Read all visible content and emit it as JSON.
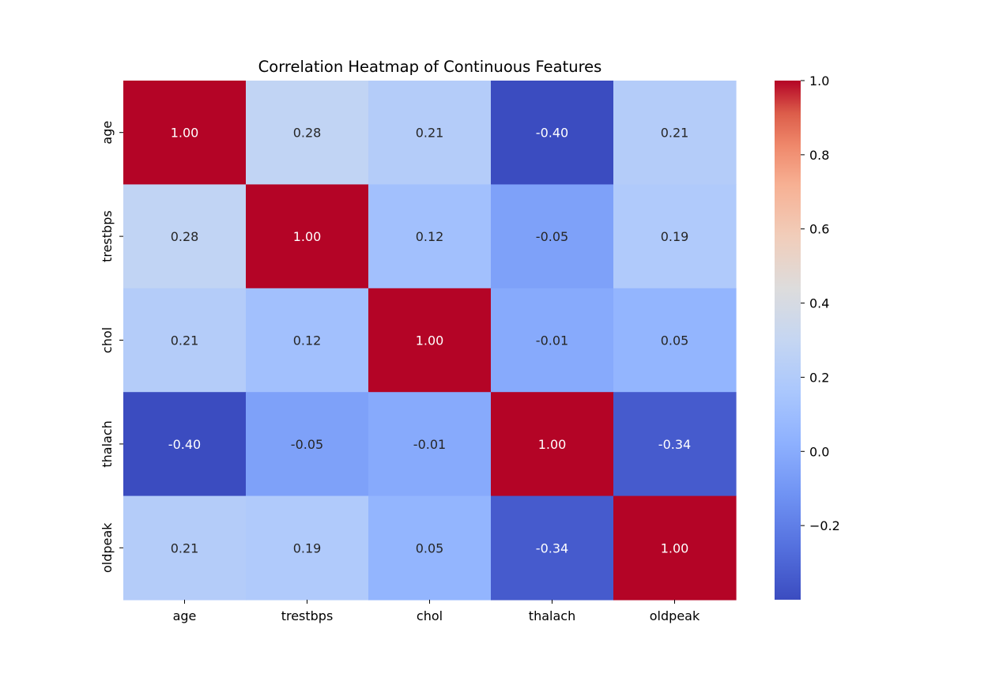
{
  "chart_data": {
    "type": "heatmap",
    "title": "Correlation Heatmap of Continuous Features",
    "x_labels": [
      "age",
      "trestbps",
      "chol",
      "thalach",
      "oldpeak"
    ],
    "y_labels": [
      "age",
      "trestbps",
      "chol",
      "thalach",
      "oldpeak"
    ],
    "values": [
      [
        1.0,
        0.28,
        0.21,
        -0.4,
        0.21
      ],
      [
        0.28,
        1.0,
        0.12,
        -0.05,
        0.19
      ],
      [
        0.21,
        0.12,
        1.0,
        -0.01,
        0.05
      ],
      [
        -0.4,
        -0.05,
        -0.01,
        1.0,
        -0.34
      ],
      [
        0.21,
        0.19,
        0.05,
        -0.34,
        1.0
      ]
    ],
    "cell_labels": [
      [
        "1.00",
        "0.28",
        "0.21",
        "-0.40",
        "0.21"
      ],
      [
        "0.28",
        "1.00",
        "0.12",
        "-0.05",
        "0.19"
      ],
      [
        "0.21",
        "0.12",
        "1.00",
        "-0.01",
        "0.05"
      ],
      [
        "-0.40",
        "-0.05",
        "-0.01",
        "1.00",
        "-0.34"
      ],
      [
        "0.21",
        "0.19",
        "0.05",
        "-0.34",
        "1.00"
      ]
    ],
    "colormap": "coolwarm",
    "colorbar": {
      "vmin": -0.4,
      "vmax": 1.0,
      "ticks": [
        -0.2,
        0.0,
        0.2,
        0.4,
        0.6,
        0.8,
        1.0
      ],
      "tick_labels": [
        "−0.2",
        "0.0",
        "0.2",
        "0.4",
        "0.6",
        "0.8",
        "1.0"
      ]
    }
  }
}
